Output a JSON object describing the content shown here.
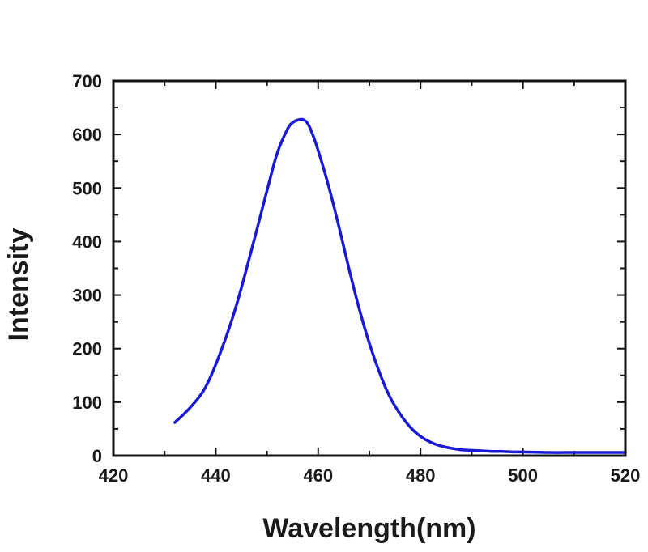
{
  "chart_data": {
    "type": "line",
    "title": "",
    "xlabel": "Wavelength(nm)",
    "ylabel": "Intensity",
    "xlim": [
      420,
      520
    ],
    "ylim": [
      0,
      700
    ],
    "x_ticks": [
      "420",
      "440",
      "460",
      "480",
      "500",
      "520"
    ],
    "y_ticks": [
      "0",
      "100",
      "200",
      "300",
      "400",
      "500",
      "600",
      "700"
    ],
    "grid": false,
    "legend": "none",
    "series": [
      {
        "color": "#1a1ad6",
        "x": [
          432,
          435,
          438,
          441,
          444,
          447,
          450,
          452,
          454,
          455,
          456,
          457,
          458,
          459,
          460,
          462,
          464,
          466,
          468,
          470,
          472,
          474,
          476,
          478,
          480,
          482,
          484,
          486,
          488,
          490,
          492,
          494,
          496,
          498,
          500,
          505,
          510,
          515,
          520
        ],
        "y": [
          62,
          90,
          128,
          195,
          280,
          385,
          495,
          565,
          610,
          622,
          627,
          628,
          620,
          598,
          570,
          505,
          430,
          350,
          275,
          210,
          155,
          110,
          78,
          53,
          36,
          25,
          18,
          14,
          11,
          10,
          9,
          8,
          8,
          7,
          7,
          6,
          6,
          6,
          6
        ]
      }
    ]
  }
}
